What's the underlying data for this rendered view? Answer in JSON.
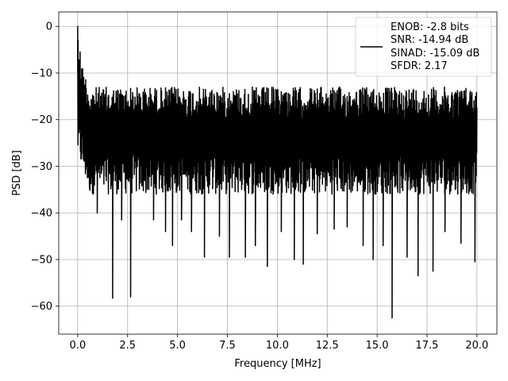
{
  "chart_data": {
    "type": "line",
    "title": "",
    "xlabel": "Frequency [MHz]",
    "ylabel": "PSD [dB]",
    "xlim": [
      -0.95,
      21.0
    ],
    "ylim": [
      -66,
      3.1
    ],
    "xticks": [
      0.0,
      2.5,
      5.0,
      7.5,
      10.0,
      12.5,
      15.0,
      17.5,
      20.0
    ],
    "xtick_labels": [
      "0.0",
      "2.5",
      "5.0",
      "7.5",
      "10.0",
      "12.5",
      "15.0",
      "17.5",
      "20.0"
    ],
    "yticks": [
      0,
      -10,
      -20,
      -30,
      -40,
      -50,
      -60
    ],
    "ytick_labels": [
      "0",
      "−10",
      "−20",
      "−30",
      "−40",
      "−50",
      "−60"
    ],
    "grid": true,
    "legend_position": "top-right",
    "legend": {
      "lines": [
        "ENOB: -2.8 bits",
        "SNR: -14.94 dB",
        "SINAD: -15.09 dB",
        "SFDR: 2.17"
      ]
    },
    "series": [
      {
        "color": "#000000",
        "noise_floor_mean": -24,
        "noise_floor_range": [
          -36,
          -13
        ],
        "x_range": [
          0.0,
          20.0
        ],
        "peaks": [
          {
            "x": 0.0,
            "y": 0.0
          },
          {
            "x": 0.02,
            "y": -3.0
          },
          {
            "x": 0.05,
            "y": -8.0
          },
          {
            "x": 0.12,
            "y": -5.5
          },
          {
            "x": 0.2,
            "y": -9.5
          },
          {
            "x": 0.3,
            "y": -12.0
          }
        ],
        "dips": [
          {
            "x": 0.98,
            "y": -40.0
          },
          {
            "x": 1.75,
            "y": -58.3
          },
          {
            "x": 2.2,
            "y": -41.5
          },
          {
            "x": 2.65,
            "y": -58.0
          },
          {
            "x": 3.8,
            "y": -41.5
          },
          {
            "x": 4.4,
            "y": -44.0
          },
          {
            "x": 4.75,
            "y": -47.0
          },
          {
            "x": 5.2,
            "y": -41.5
          },
          {
            "x": 5.7,
            "y": -44.0
          },
          {
            "x": 6.35,
            "y": -49.5
          },
          {
            "x": 7.1,
            "y": -45.0
          },
          {
            "x": 7.6,
            "y": -49.5
          },
          {
            "x": 8.4,
            "y": -49.5
          },
          {
            "x": 8.9,
            "y": -47.0
          },
          {
            "x": 9.5,
            "y": -51.5
          },
          {
            "x": 10.2,
            "y": -44.0
          },
          {
            "x": 10.85,
            "y": -50.0
          },
          {
            "x": 11.3,
            "y": -51.0
          },
          {
            "x": 12.0,
            "y": -44.5
          },
          {
            "x": 12.85,
            "y": -43.5
          },
          {
            "x": 13.5,
            "y": -43.0
          },
          {
            "x": 14.3,
            "y": -47.0
          },
          {
            "x": 14.8,
            "y": -50.0
          },
          {
            "x": 15.3,
            "y": -47.0
          },
          {
            "x": 15.75,
            "y": -62.5
          },
          {
            "x": 16.5,
            "y": -49.5
          },
          {
            "x": 17.05,
            "y": -53.5
          },
          {
            "x": 17.8,
            "y": -52.5
          },
          {
            "x": 18.4,
            "y": -44.0
          },
          {
            "x": 19.2,
            "y": -46.5
          },
          {
            "x": 19.9,
            "y": -50.5
          }
        ]
      }
    ]
  }
}
